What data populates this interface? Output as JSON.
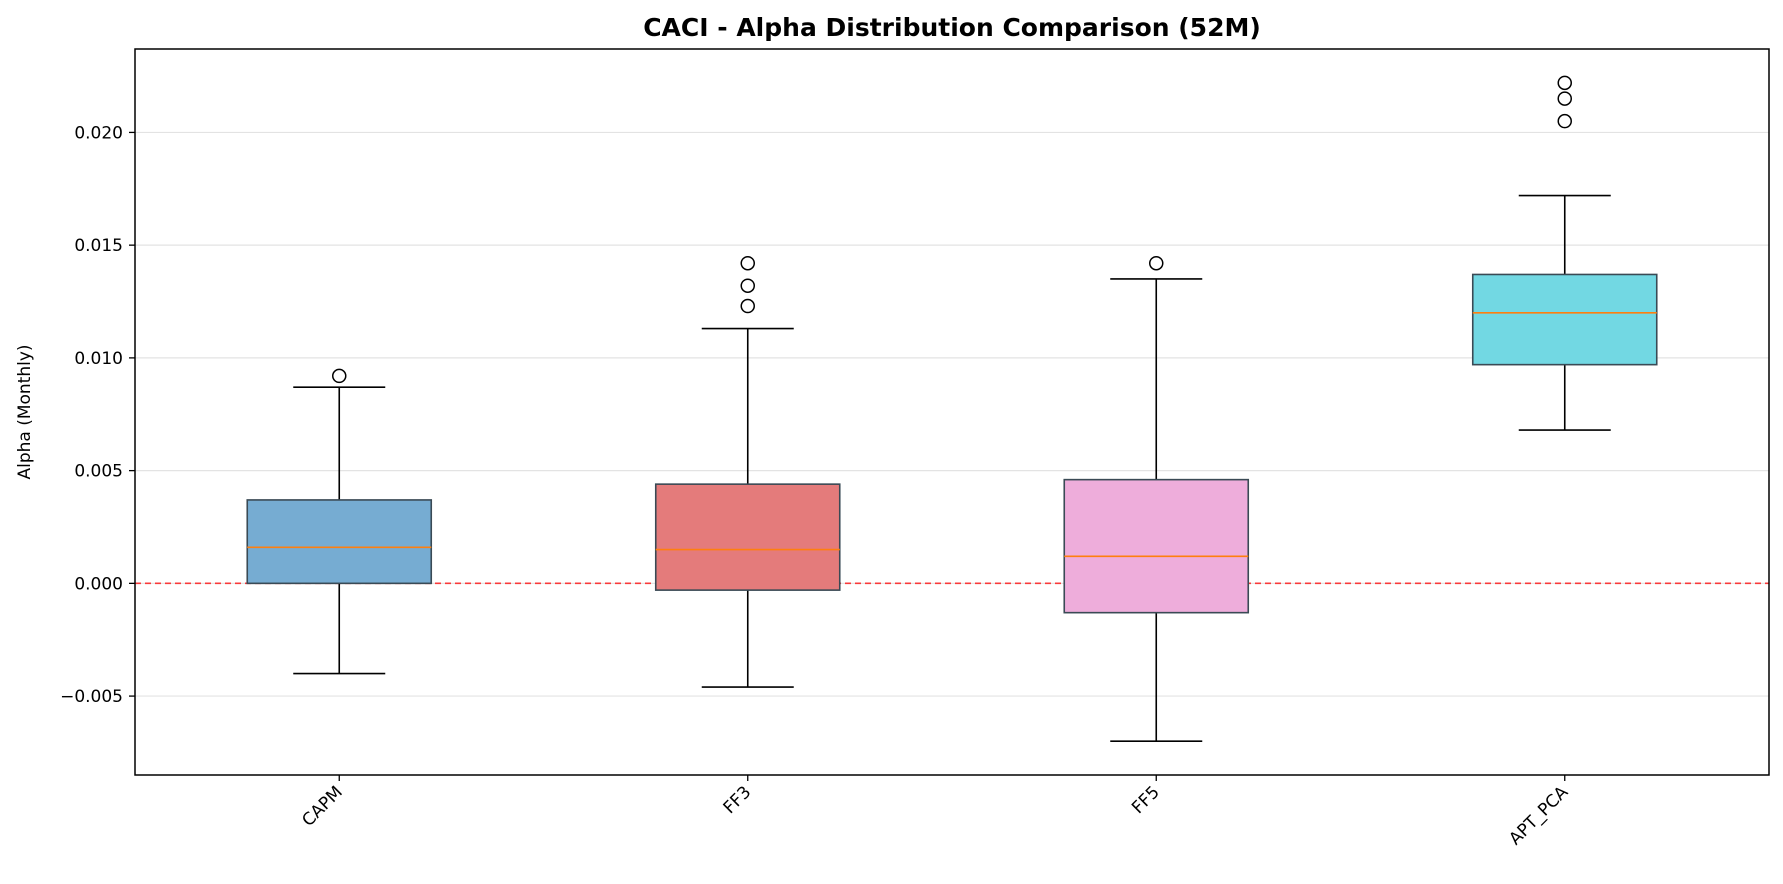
{
  "chart_data": {
    "type": "box",
    "title": "CACI - Alpha Distribution Comparison (52M)",
    "xlabel": "",
    "ylabel": "Alpha (Monthly)",
    "ylim": [
      -0.0085,
      0.0237
    ],
    "yticks": [
      -0.005,
      0.0,
      0.005,
      0.01,
      0.015,
      0.02
    ],
    "ytick_labels": [
      "−0.005",
      "0.000",
      "0.005",
      "0.010",
      "0.015",
      "0.020"
    ],
    "grid": "y",
    "reference_line": {
      "y": 0.0,
      "color": "#ff0000",
      "style": "dashed"
    },
    "categories": [
      "CAPM",
      "FF3",
      "FF5",
      "APT_PCA"
    ],
    "boxes": [
      {
        "name": "CAPM",
        "color": "#76acd2",
        "whisker_low": -0.004,
        "q1": 0.0,
        "median": 0.0016,
        "q3": 0.0037,
        "whisker_high": 0.0087,
        "outliers": [
          0.0092
        ]
      },
      {
        "name": "FF3",
        "color": "#e47b7b",
        "whisker_low": -0.0046,
        "q1": -0.0003,
        "median": 0.0015,
        "q3": 0.0044,
        "whisker_high": 0.0113,
        "outliers": [
          0.0123,
          0.0132,
          0.0142
        ]
      },
      {
        "name": "FF5",
        "color": "#eeaddb",
        "whisker_low": -0.007,
        "q1": -0.0013,
        "median": 0.0012,
        "q3": 0.0046,
        "whisker_high": 0.0135,
        "outliers": [
          0.0142
        ]
      },
      {
        "name": "APT_PCA",
        "color": "#72d8e3",
        "whisker_low": 0.0068,
        "q1": 0.0097,
        "median": 0.012,
        "q3": 0.0137,
        "whisker_high": 0.0172,
        "outliers": [
          0.0205,
          0.0215,
          0.0222
        ]
      }
    ],
    "median_color": "#ff7f0e"
  }
}
